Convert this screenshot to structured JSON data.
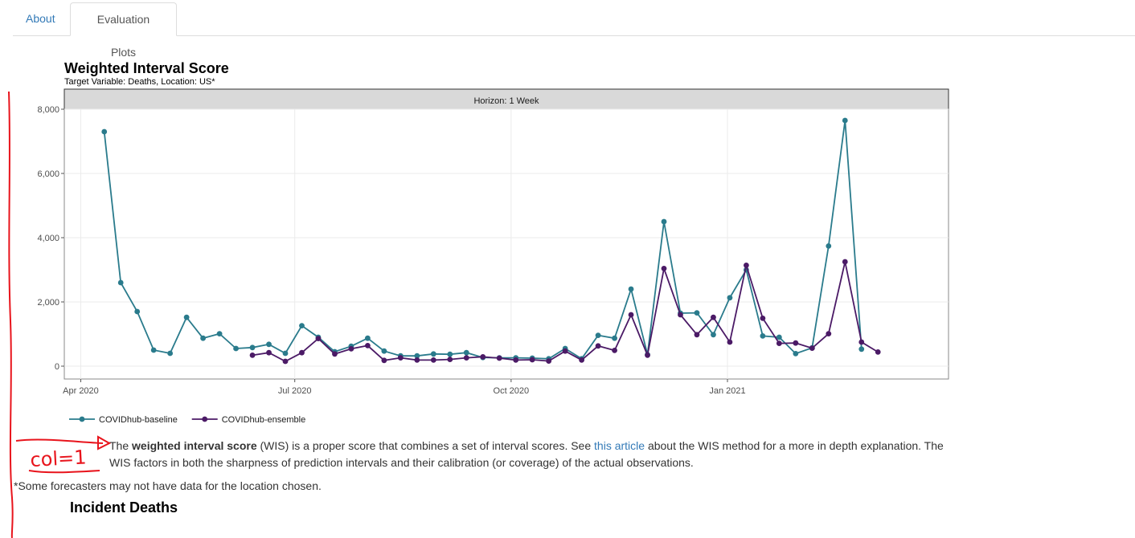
{
  "tabs": [
    {
      "label": "About",
      "active": false
    },
    {
      "label": "Evaluation Plots",
      "active": true
    }
  ],
  "chart_data": {
    "type": "line",
    "title": "Weighted Interval Score",
    "subtitle": "Target Variable: Deaths, Location: US*",
    "facet_label": "Horizon: 1 Week",
    "x_ticks": [
      "Apr 2020",
      "Jul 2020",
      "Oct 2020",
      "Jan 2021"
    ],
    "y_ticks": [
      "0",
      "2,000",
      "4,000",
      "6,000",
      "8,000"
    ],
    "ylim": [
      0,
      8000
    ],
    "xlim": [
      "2020-03-25",
      "2021-04-05"
    ],
    "grid": true,
    "legend_position": "bottom-left",
    "colors": {
      "baseline": "#2a7b8c",
      "ensemble": "#4b1a66"
    },
    "series": [
      {
        "name": "COVIDhub-baseline",
        "color": "#2a7b8c",
        "points": [
          [
            "2020-04-11",
            7300
          ],
          [
            "2020-04-18",
            2600
          ],
          [
            "2020-04-25",
            1700
          ],
          [
            "2020-05-02",
            500
          ],
          [
            "2020-05-09",
            400
          ],
          [
            "2020-05-16",
            1520
          ],
          [
            "2020-05-23",
            870
          ],
          [
            "2020-05-30",
            1010
          ],
          [
            "2020-06-06",
            550
          ],
          [
            "2020-06-13",
            580
          ],
          [
            "2020-06-20",
            680
          ],
          [
            "2020-06-27",
            400
          ],
          [
            "2020-07-04",
            1260
          ],
          [
            "2020-07-11",
            900
          ],
          [
            "2020-07-18",
            450
          ],
          [
            "2020-07-25",
            620
          ],
          [
            "2020-08-01",
            870
          ],
          [
            "2020-08-08",
            470
          ],
          [
            "2020-08-15",
            320
          ],
          [
            "2020-08-22",
            320
          ],
          [
            "2020-08-29",
            380
          ],
          [
            "2020-09-05",
            370
          ],
          [
            "2020-09-12",
            420
          ],
          [
            "2020-09-19",
            270
          ],
          [
            "2020-09-26",
            260
          ],
          [
            "2020-10-03",
            260
          ],
          [
            "2020-10-10",
            250
          ],
          [
            "2020-10-17",
            230
          ],
          [
            "2020-10-24",
            550
          ],
          [
            "2020-10-31",
            230
          ],
          [
            "2020-11-07",
            960
          ],
          [
            "2020-11-14",
            870
          ],
          [
            "2020-11-21",
            2400
          ],
          [
            "2020-11-28",
            360
          ],
          [
            "2020-12-05",
            4500
          ],
          [
            "2020-12-12",
            1650
          ],
          [
            "2020-12-19",
            1660
          ],
          [
            "2020-12-26",
            980
          ],
          [
            "2021-01-02",
            2130
          ],
          [
            "2021-01-09",
            3000
          ],
          [
            "2021-01-16",
            940
          ],
          [
            "2021-01-23",
            900
          ],
          [
            "2021-01-30",
            390
          ],
          [
            "2021-02-06",
            570
          ],
          [
            "2021-02-13",
            3740
          ],
          [
            "2021-02-20",
            7650
          ],
          [
            "2021-02-27",
            530
          ]
        ]
      },
      {
        "name": "COVIDhub-ensemble",
        "color": "#4b1a66",
        "points": [
          [
            "2020-06-13",
            340
          ],
          [
            "2020-06-20",
            420
          ],
          [
            "2020-06-27",
            150
          ],
          [
            "2020-07-04",
            420
          ],
          [
            "2020-07-11",
            860
          ],
          [
            "2020-07-18",
            380
          ],
          [
            "2020-07-25",
            540
          ],
          [
            "2020-08-01",
            640
          ],
          [
            "2020-08-08",
            180
          ],
          [
            "2020-08-15",
            260
          ],
          [
            "2020-08-22",
            190
          ],
          [
            "2020-08-29",
            190
          ],
          [
            "2020-09-05",
            210
          ],
          [
            "2020-09-12",
            260
          ],
          [
            "2020-09-19",
            290
          ],
          [
            "2020-09-26",
            250
          ],
          [
            "2020-10-03",
            190
          ],
          [
            "2020-10-10",
            200
          ],
          [
            "2020-10-17",
            160
          ],
          [
            "2020-10-24",
            470
          ],
          [
            "2020-10-31",
            190
          ],
          [
            "2020-11-07",
            630
          ],
          [
            "2020-11-14",
            490
          ],
          [
            "2020-11-21",
            1600
          ],
          [
            "2020-11-28",
            340
          ],
          [
            "2020-12-05",
            3040
          ],
          [
            "2020-12-12",
            1600
          ],
          [
            "2020-12-19",
            980
          ],
          [
            "2020-12-26",
            1520
          ],
          [
            "2021-01-02",
            750
          ],
          [
            "2021-01-09",
            3140
          ],
          [
            "2021-01-16",
            1490
          ],
          [
            "2021-01-23",
            710
          ],
          [
            "2021-01-30",
            720
          ],
          [
            "2021-02-06",
            560
          ],
          [
            "2021-02-13",
            1010
          ],
          [
            "2021-02-20",
            3250
          ],
          [
            "2021-02-27",
            750
          ],
          [
            "2021-03-06",
            440
          ]
        ]
      }
    ]
  },
  "description": {
    "prefix": "The ",
    "bold": "weighted interval score",
    "mid": " (WIS) is a proper score that combines a set of interval scores. See ",
    "link": "this article",
    "suffix": " about the WIS method for a more in depth explanation. The WIS factors in both the sharpness of prediction intervals and their calibration (or coverage) of the actual observations."
  },
  "note": "*Some forecasters may not have data for the location chosen.",
  "section_title": "Incident Deaths",
  "annotation": {
    "text": "col=1",
    "color": "#e8141c"
  }
}
